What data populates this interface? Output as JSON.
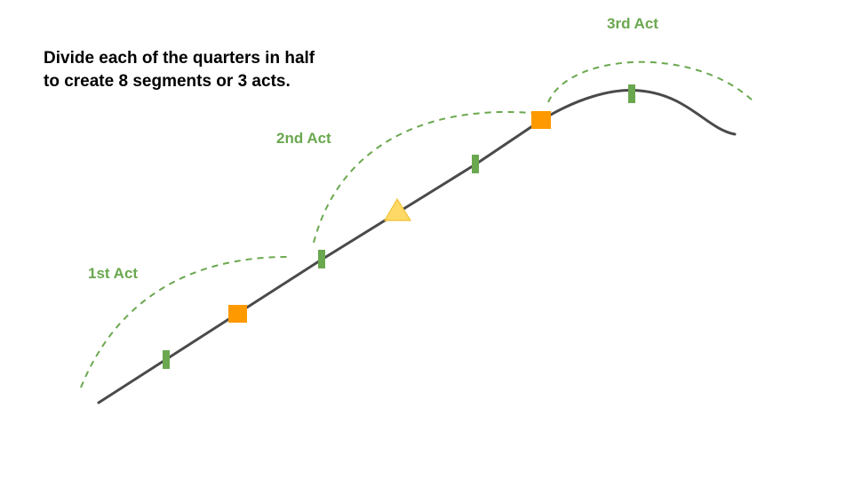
{
  "instruction": {
    "line1": "Divide each of the quarters in half",
    "line2": "to create 8 segments or 3 acts."
  },
  "acts": [
    {
      "label": "1st Act"
    },
    {
      "label": "2nd Act"
    },
    {
      "label": "3rd Act"
    }
  ],
  "colors": {
    "text": "#000000",
    "act_label": "#6aa84f",
    "act_arc": "#6aa84f",
    "story_line": "#4a4a4a",
    "segment_tick": "#6aa84f",
    "quarter_marker": "#ff9900",
    "midpoint_marker": "#ffd966",
    "midpoint_marker_stroke": "#f1c232"
  }
}
